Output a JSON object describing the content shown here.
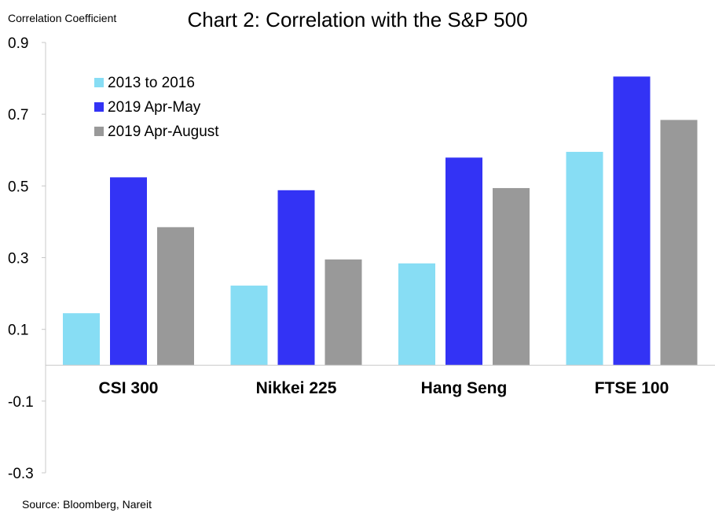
{
  "chart_data": {
    "type": "bar",
    "title": "Chart 2: Correlation with the S&P 500",
    "ylabel": "Correlation Coefficient",
    "xlabel": "",
    "source": "Source: Bloomberg, Nareit",
    "categories": [
      "CSI 300",
      "Nikkei 225",
      "Hang Seng",
      "FTSE 100"
    ],
    "ylim": [
      -0.3,
      0.9
    ],
    "yticks": [
      0.9,
      0.7,
      0.5,
      0.3,
      0.1,
      -0.1,
      -0.3
    ],
    "grid": false,
    "legend_position": "top-left",
    "series": [
      {
        "name": "2013 to 2016",
        "color": "#87DDF4",
        "values": [
          0.145,
          0.222,
          0.284,
          0.595
        ]
      },
      {
        "name": "2019 Apr-May",
        "color": "#3333F5",
        "values": [
          0.524,
          0.488,
          0.579,
          0.805
        ]
      },
      {
        "name": "2019 Apr-August",
        "color": "#999999",
        "values": [
          0.385,
          0.295,
          0.494,
          0.684
        ]
      }
    ]
  }
}
